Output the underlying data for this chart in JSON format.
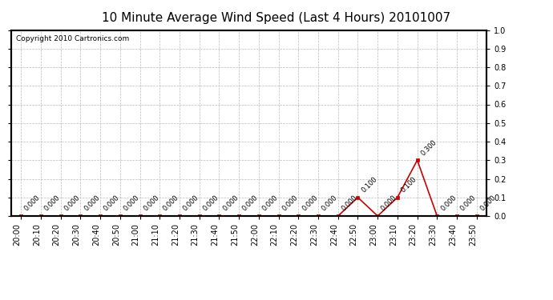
{
  "title": "10 Minute Average Wind Speed (Last 4 Hours) 20101007",
  "copyright_text": "Copyright 2010 Cartronics.com",
  "x_labels": [
    "20:00",
    "20:10",
    "20:20",
    "20:30",
    "20:40",
    "20:50",
    "21:00",
    "21:10",
    "21:20",
    "21:30",
    "21:40",
    "21:50",
    "22:00",
    "22:10",
    "22:20",
    "22:30",
    "22:40",
    "22:50",
    "23:00",
    "23:10",
    "23:20",
    "23:30",
    "23:40",
    "23:50"
  ],
  "y_values": [
    0.0,
    0.0,
    0.0,
    0.0,
    0.0,
    0.0,
    0.0,
    0.0,
    0.0,
    0.0,
    0.0,
    0.0,
    0.0,
    0.0,
    0.0,
    0.0,
    0.0,
    0.1,
    0.0,
    0.1,
    0.3,
    0.0,
    0.0,
    0.0
  ],
  "line_color": "#cc0000",
  "marker_color": "#cc0000",
  "ylim": [
    0.0,
    1.0
  ],
  "yticks": [
    0.0,
    0.1,
    0.2,
    0.3,
    0.4,
    0.5,
    0.6,
    0.7,
    0.8,
    0.9,
    1.0
  ],
  "bg_color": "#ffffff",
  "grid_color": "#bbbbbb",
  "title_fontsize": 11,
  "tick_fontsize": 7,
  "annot_fontsize": 6,
  "copyright_fontsize": 6.5,
  "label_rotation": 90
}
